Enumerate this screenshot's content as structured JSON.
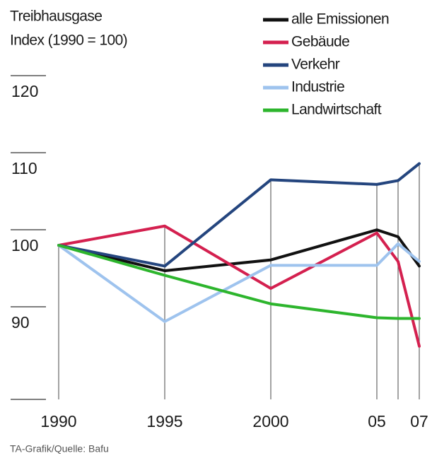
{
  "chart_data": {
    "type": "line",
    "title": "Treibhausgase",
    "subtitle": "Index (1990 = 100)",
    "source": "TA-Grafik/Quelle: Bafu",
    "x": [
      1990,
      1995,
      2000,
      2005,
      2006,
      2007
    ],
    "xticks": [
      1990,
      1995,
      2000,
      {
        "value": 2005,
        "label": "05"
      },
      {
        "value": 2007,
        "label": "07"
      }
    ],
    "xlim": [
      1988,
      2007.5
    ],
    "ylim": [
      80,
      122
    ],
    "yticks": [
      90,
      100,
      110,
      120
    ],
    "series": [
      {
        "name": "alle Emissionen",
        "color": "#111111",
        "values": [
          100,
          96.7,
          98.1,
          102.0,
          101.1,
          97.3
        ]
      },
      {
        "name": "Gebäude",
        "color": "#d4204f",
        "values": [
          100,
          102.5,
          94.4,
          101.6,
          97.9,
          86.9
        ]
      },
      {
        "name": "Verkehr",
        "color": "#24457e",
        "values": [
          100,
          97.3,
          108.5,
          107.9,
          108.4,
          110.6
        ]
      },
      {
        "name": "Industrie",
        "color": "#9ec3ee",
        "values": [
          100,
          90.1,
          97.4,
          97.4,
          100.2,
          97.9
        ]
      },
      {
        "name": "Landwirtschaft",
        "color": "#2db52d",
        "values": [
          100,
          96.1,
          92.4,
          90.6,
          90.5,
          90.5
        ]
      }
    ]
  }
}
